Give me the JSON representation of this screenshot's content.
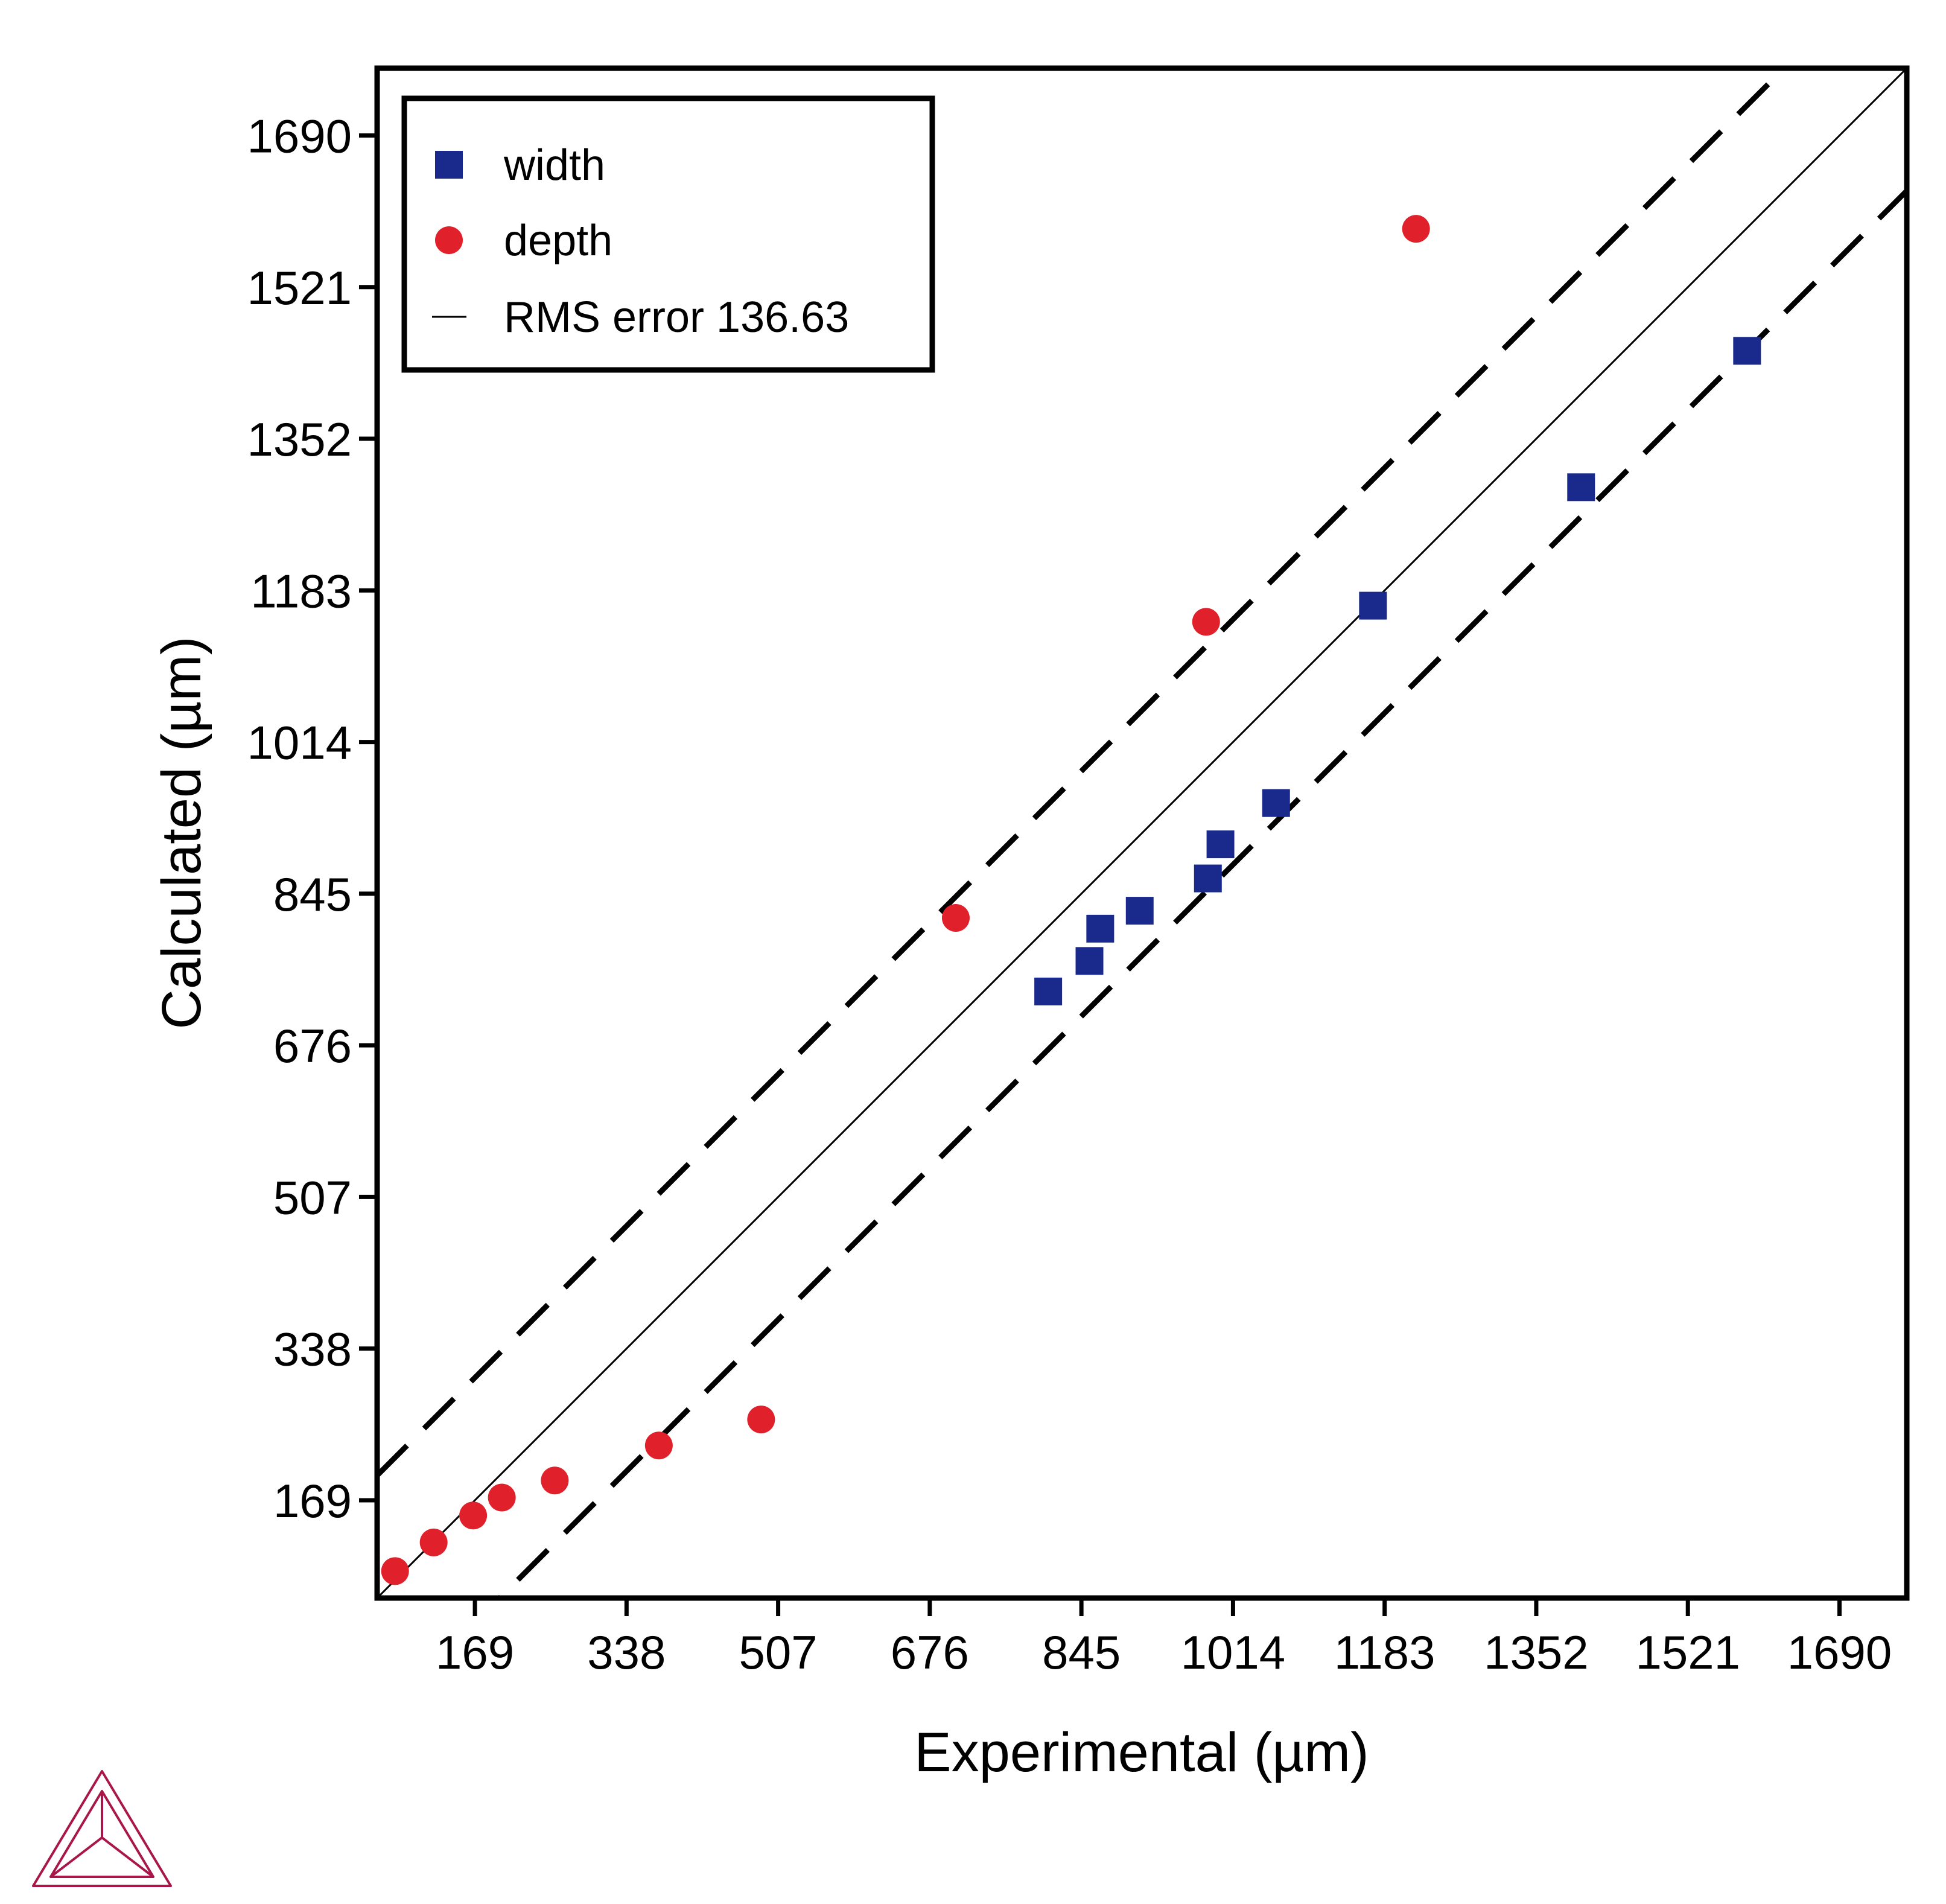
{
  "chart_data": {
    "type": "scatter",
    "xlabel": "Experimental (µm)",
    "ylabel": "Calculated (µm)",
    "xlim": [
      60,
      1765
    ],
    "ylim": [
      60,
      1765
    ],
    "xticks": [
      169,
      338,
      507,
      676,
      845,
      1014,
      1183,
      1352,
      1521,
      1690
    ],
    "yticks": [
      169,
      338,
      507,
      676,
      845,
      1014,
      1183,
      1352,
      1521,
      1690
    ],
    "tick_labels_x": [
      "169",
      "338",
      "507",
      "676",
      "845",
      "1014",
      "1183",
      "1352",
      "1521",
      "1690"
    ],
    "tick_labels_y": [
      "169",
      "338",
      "507",
      "676",
      "845",
      "1014",
      "1183",
      "1352",
      "1521",
      "1690"
    ],
    "grid": false,
    "legend_position": "top-left",
    "series": [
      {
        "name": "width",
        "marker": "square",
        "color": "#1a2a8c",
        "points": [
          [
            808,
            736
          ],
          [
            854,
            770
          ],
          [
            866,
            806
          ],
          [
            910,
            826
          ],
          [
            986,
            862
          ],
          [
            1000,
            900
          ],
          [
            1062,
            946
          ],
          [
            1170,
            1166
          ],
          [
            1402,
            1298
          ],
          [
            1587,
            1450
          ]
        ]
      },
      {
        "name": "depth",
        "marker": "circle",
        "color": "#e0202a",
        "points": [
          [
            80,
            90
          ],
          [
            123,
            122
          ],
          [
            167,
            152
          ],
          [
            199,
            172
          ],
          [
            258,
            191
          ],
          [
            374,
            230
          ],
          [
            488,
            259
          ],
          [
            705,
            818
          ],
          [
            984,
            1148
          ],
          [
            1218,
            1586
          ]
        ]
      }
    ],
    "reference_lines": {
      "name": "RMS error 136.63",
      "identity_color": "#000000",
      "offset": 136.63
    }
  }
}
